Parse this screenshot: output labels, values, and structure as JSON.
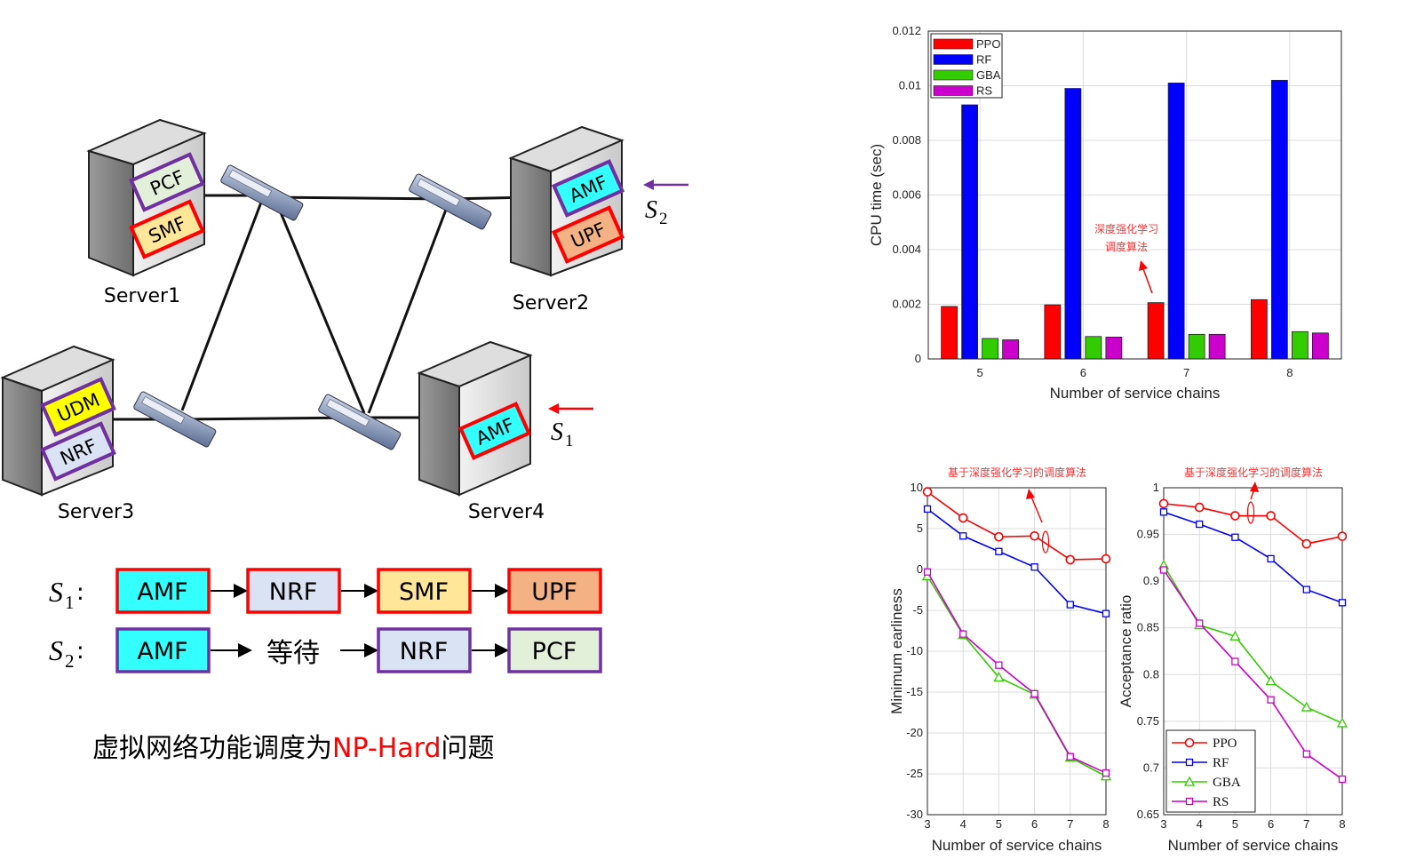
{
  "network": {
    "servers": [
      {
        "name": "Server1",
        "vnfs": [
          "PCF",
          "SMF"
        ]
      },
      {
        "name": "Server2",
        "vnfs": [
          "AMF",
          "UPF"
        ]
      },
      {
        "name": "Server3",
        "vnfs": [
          "UDM",
          "NRF"
        ]
      },
      {
        "name": "Server4",
        "vnfs": [
          "AMF"
        ]
      }
    ],
    "s2_label": "S",
    "s2_sub": "2",
    "s1_label": "S",
    "s1_sub": "1"
  },
  "chains": [
    {
      "label": "S",
      "sub": "1",
      "colon": ":",
      "steps": [
        "AMF",
        "NRF",
        "SMF",
        "UPF"
      ]
    },
    {
      "label": "S",
      "sub": "2",
      "colon": ":",
      "steps": [
        "AMF",
        "等待",
        "NRF",
        "PCF"
      ]
    }
  ],
  "caption": {
    "prefix": "虚拟网络功能调度为",
    "highlight": "NP-Hard",
    "suffix": "问题"
  },
  "colors": {
    "ppo": "#ff0000",
    "rf": "#0000ff",
    "gba": "#33cc00",
    "rs": "#cc00cc",
    "amf_fill": "#33ffff",
    "smf_fill": "#ffe699",
    "upf_fill": "#f4b183",
    "nrf_fill": "#dae3f3",
    "pcf_fill": "#e2f0d9",
    "udm_fill": "#ffff00",
    "red_border": "#ff0000",
    "purple_border": "#7030a0"
  },
  "chart_data": [
    {
      "type": "bar",
      "categories": [
        "5",
        "6",
        "7",
        "8"
      ],
      "series": [
        {
          "name": "PPO",
          "values": [
            0.00192,
            0.00198,
            0.00206,
            0.00217
          ]
        },
        {
          "name": "RF",
          "values": [
            0.0093,
            0.0099,
            0.0101,
            0.0102
          ]
        },
        {
          "name": "GBA",
          "values": [
            0.00075,
            0.00082,
            0.0009,
            0.001
          ]
        },
        {
          "name": "RS",
          "values": [
            0.0007,
            0.0008,
            0.0009,
            0.00095
          ]
        }
      ],
      "xlabel": "Number of service chains",
      "ylabel": "CPU time (sec)",
      "ylim": [
        0,
        0.012
      ],
      "yticks": [
        "0",
        "0.002",
        "0.004",
        "0.006",
        "0.008",
        "0.01",
        "0.012"
      ],
      "grid": true,
      "legend": "top-left",
      "annotation": [
        "深度强化学习",
        "调度算法"
      ]
    },
    {
      "type": "line",
      "x": [
        3,
        4,
        5,
        6,
        7,
        8
      ],
      "series": [
        {
          "name": "PPO",
          "values": [
            9.5,
            6.3,
            4.0,
            4.1,
            1.2,
            1.3
          ]
        },
        {
          "name": "RF",
          "values": [
            7.4,
            4.1,
            2.2,
            0.3,
            -4.3,
            -5.4
          ]
        },
        {
          "name": "GBA",
          "values": [
            -0.8,
            -8.0,
            -13.2,
            -15.3,
            -23.0,
            -25.3
          ]
        },
        {
          "name": "RS",
          "values": [
            -0.3,
            -7.9,
            -11.7,
            -15.2,
            -22.9,
            -24.9
          ]
        }
      ],
      "xlabel": "Number of service chains",
      "ylabel": "Minimum earliness",
      "ylim": [
        -30,
        10
      ],
      "yticks": [
        "-30",
        "-25",
        "-20",
        "-15",
        "-10",
        "-5",
        "0",
        "5",
        "10"
      ],
      "xticks": [
        "3",
        "4",
        "5",
        "6",
        "7",
        "8"
      ],
      "grid": true,
      "annotation": "基于深度强化学习的调度算法"
    },
    {
      "type": "line",
      "x": [
        3,
        4,
        5,
        6,
        7,
        8
      ],
      "series": [
        {
          "name": "PPO",
          "values": [
            0.983,
            0.979,
            0.97,
            0.97,
            0.94,
            0.948
          ]
        },
        {
          "name": "RF",
          "values": [
            0.974,
            0.961,
            0.947,
            0.924,
            0.891,
            0.877
          ]
        },
        {
          "name": "GBA",
          "values": [
            0.917,
            0.853,
            0.841,
            0.793,
            0.765,
            0.748
          ]
        },
        {
          "name": "RS",
          "values": [
            0.912,
            0.855,
            0.814,
            0.773,
            0.715,
            0.688
          ]
        }
      ],
      "xlabel": "Number of service chains",
      "ylabel": "Acceptance ratio",
      "ylim": [
        0.65,
        1
      ],
      "yticks": [
        "0.65",
        "0.7",
        "0.75",
        "0.8",
        "0.85",
        "0.9",
        "0.95",
        "1"
      ],
      "xticks": [
        "3",
        "4",
        "5",
        "6",
        "7",
        "8"
      ],
      "grid": true,
      "legend": "bottom-left",
      "annotation": "基于深度强化学习的调度算法"
    }
  ]
}
